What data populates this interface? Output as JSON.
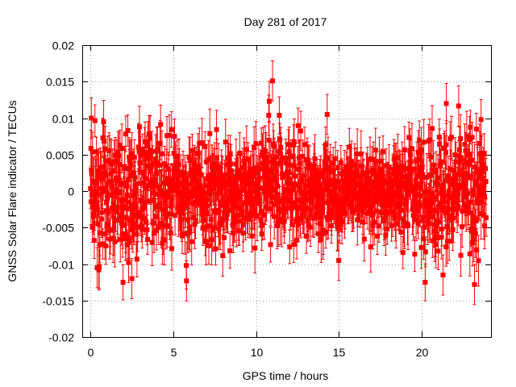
{
  "chart_data": {
    "type": "scatter",
    "title": "Day 281 of 2017",
    "xlabel": "GPS time / hours",
    "ylabel": "GNSS Solar Flare indicator / TECUs",
    "xlim": [
      -0.5,
      24.2
    ],
    "ylim": [
      -0.02,
      0.02
    ],
    "x_ticks": [
      "0",
      "5",
      "10",
      "15",
      "20"
    ],
    "x_tick_values": [
      0,
      5,
      10,
      15,
      20
    ],
    "y_ticks": [
      "0.02",
      "0.015",
      "0.01",
      "0.005",
      "0",
      "-0.005",
      "-0.01",
      "-0.015",
      "-0.02"
    ],
    "y_tick_values": [
      0.02,
      0.015,
      0.01,
      0.005,
      0,
      -0.005,
      -0.01,
      -0.015,
      -0.02
    ],
    "grid": true,
    "legend": "none",
    "series_color": "#ff0000",
    "marker": "square",
    "error_bars": true,
    "x_range_data": [
      0,
      23.9
    ],
    "typical_error": 0.0025,
    "notable_points": [
      {
        "x": 0.05,
        "y": 0.01
      },
      {
        "x": 0.4,
        "y": -0.0105
      },
      {
        "x": 0.5,
        "y": -0.0108
      },
      {
        "x": 2.3,
        "y": -0.0098
      },
      {
        "x": 2.5,
        "y": -0.012
      },
      {
        "x": 5.8,
        "y": -0.0123
      },
      {
        "x": 10.8,
        "y": 0.0123
      },
      {
        "x": 11.0,
        "y": 0.0151
      },
      {
        "x": 14.3,
        "y": 0.0105
      },
      {
        "x": 15.0,
        "y": -0.0095
      },
      {
        "x": 21.5,
        "y": 0.012
      },
      {
        "x": 21.3,
        "y": -0.0115
      },
      {
        "x": 23.2,
        "y": -0.0128
      },
      {
        "x": 23.6,
        "y": 0.0098
      }
    ]
  }
}
